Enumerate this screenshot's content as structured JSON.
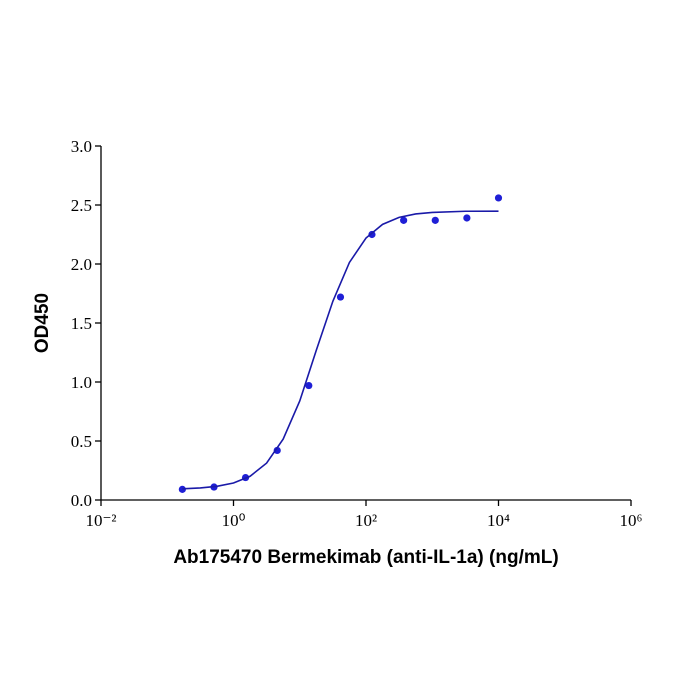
{
  "chart_data": {
    "type": "scatter",
    "xlabel": "Ab175470 Bermekimab (anti-IL-1a) (ng/mL)",
    "ylabel": "OD450",
    "xscale": "log",
    "xlim": [
      0.01,
      1000000
    ],
    "xticks": [
      {
        "value": 0.01,
        "label": "10⁻²"
      },
      {
        "value": 1,
        "label": "10⁰"
      },
      {
        "value": 100,
        "label": "10²"
      },
      {
        "value": 10000,
        "label": "10⁴"
      },
      {
        "value": 1000000,
        "label": "10⁶"
      }
    ],
    "ylim": [
      0,
      3
    ],
    "yticks": [
      {
        "value": 0,
        "label": "0.0"
      },
      {
        "value": 0.5,
        "label": "0.5"
      },
      {
        "value": 1,
        "label": "1.0"
      },
      {
        "value": 1.5,
        "label": "1.5"
      },
      {
        "value": 2,
        "label": "2.0"
      },
      {
        "value": 2.5,
        "label": "2.5"
      },
      {
        "value": 3,
        "label": "3.0"
      }
    ],
    "series": [
      {
        "kind": "points",
        "color": "#1f1fd6",
        "x": [
          0.169,
          0.508,
          1.52,
          4.57,
          13.7,
          41.2,
          123,
          370,
          1111,
          3333,
          10000
        ],
        "values": [
          0.09,
          0.11,
          0.19,
          0.42,
          0.97,
          1.72,
          2.25,
          2.37,
          2.37,
          2.39,
          2.56
        ]
      },
      {
        "kind": "curve",
        "color": "#1a1aa8",
        "x": [
          0.169,
          0.316,
          0.562,
          1,
          1.78,
          3.16,
          5.62,
          10,
          17.8,
          31.6,
          56.2,
          100,
          178,
          316,
          562,
          1000,
          3162,
          10000
        ],
        "values": [
          0.095,
          0.102,
          0.116,
          0.144,
          0.201,
          0.313,
          0.516,
          0.839,
          1.27,
          1.684,
          2.013,
          2.22,
          2.336,
          2.395,
          2.424,
          2.437,
          2.447,
          2.448
        ]
      }
    ]
  }
}
